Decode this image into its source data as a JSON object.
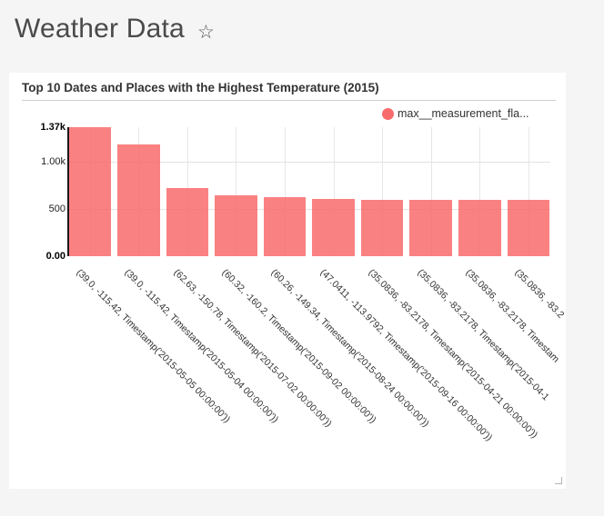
{
  "page": {
    "title": "Weather Data",
    "star_glyph": "☆"
  },
  "card": {
    "title": "Top 10 Dates and Places with the Highest Temperature (2015)",
    "legend": {
      "label": "max__measurement_fla...",
      "color": "#f96b6b"
    }
  },
  "chart_data": {
    "type": "bar",
    "title": "Top 10 Dates and Places with the Highest Temperature (2015)",
    "series_name": "max__measurement_fla...",
    "categories": [
      "(39.0, -115.42, Timestamp('2015-05-05 00:00:00'))",
      "(39.0, -115.42, Timestamp('2015-05-04 00:00:00'))",
      "(62.63, -150.78, Timestamp('2015-07-02 00:00:00'))",
      "(60.32, -160.2, Timestamp('2015-09-02 00:00:00'))",
      "(60.26, -149.34, Timestamp('2015-08-24 00:00:00'))",
      "(47.0411, -113.9792, Timestamp('2015-09-16 00:00:00'))",
      "(35.0836, -83.2178, Timestamp('2015-04-21 00:00:00'))",
      "(35.0836, -83.2178, Timestamp('2015-04-1",
      "(35.0836, -83.2178, Timestam",
      "(35.0836, -83.2"
    ],
    "values": [
      1370,
      1190,
      720,
      645,
      630,
      610,
      600,
      599,
      598,
      597
    ],
    "y_ticks": [
      {
        "label": "0.00",
        "value": 0,
        "bold": true,
        "grid": false
      },
      {
        "label": "500",
        "value": 500,
        "bold": false,
        "grid": true
      },
      {
        "label": "1.00k",
        "value": 1000,
        "bold": false,
        "grid": true
      },
      {
        "label": "1.37k",
        "value": 1370,
        "bold": true,
        "grid": false
      }
    ],
    "ylim": [
      0,
      1370
    ],
    "bar_color": "#f96b6b",
    "bar_opacity": 0.85,
    "grid": true,
    "legend_position": "top-right",
    "x_label_rotation": 45
  }
}
